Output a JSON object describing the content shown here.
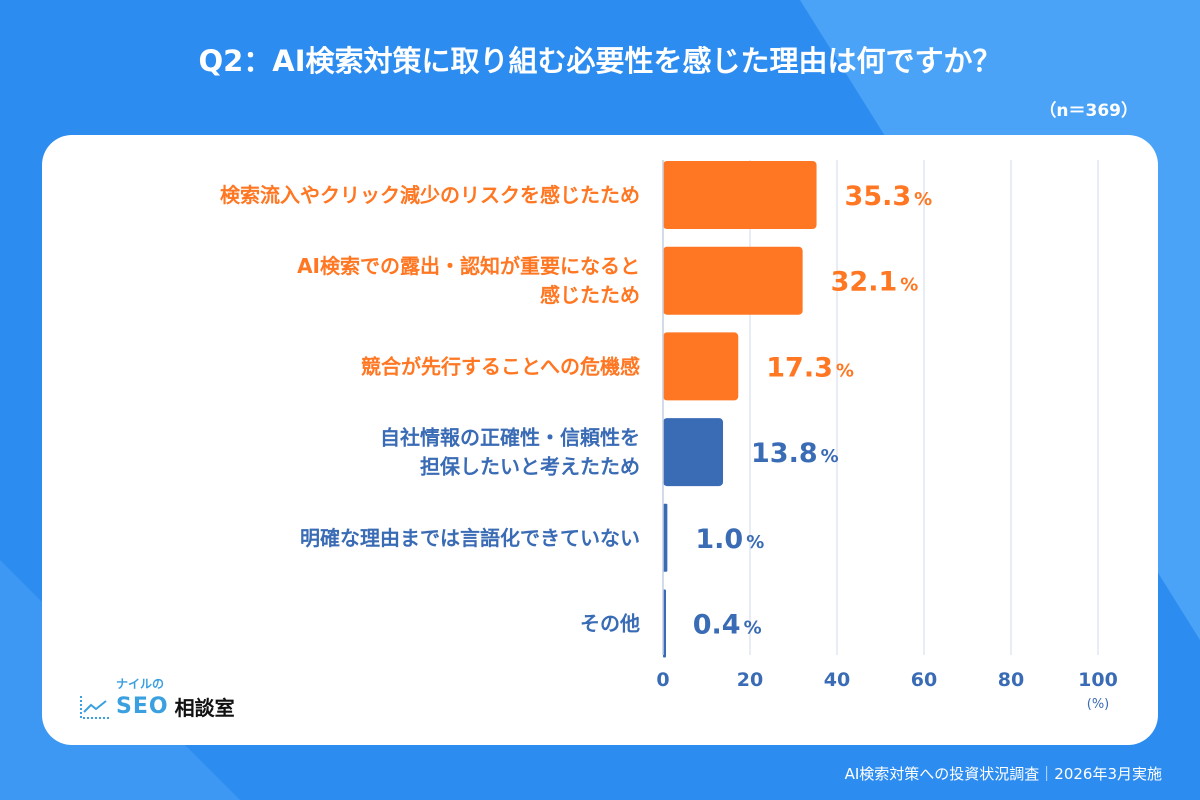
{
  "title": "Q2：AI検索対策に取り組む必要性を感じた理由は何ですか？",
  "sample": "（n＝369）",
  "footer": "AI検索対策への投資状況調査｜2026年3月実施",
  "logo": {
    "small": "ナイルの",
    "main": "SEO",
    "kanji": "相談室"
  },
  "colors": {
    "orange": "#ff7722",
    "blue": "#3a6bb5",
    "grid": "#dfe6f2",
    "bg": "#2d8cf0"
  },
  "chart_data": {
    "type": "bar",
    "orientation": "horizontal",
    "categories": [
      [
        "検索流入やクリック減少のリスクを感じたため"
      ],
      [
        "AI検索での露出・認知が重要になると",
        "感じたため"
      ],
      [
        "競合が先行することへの危機感"
      ],
      [
        "自社情報の正確性・信頼性を",
        "担保したいと考えたため"
      ],
      [
        "明確な理由までは言語化できていない"
      ],
      [
        "その他"
      ]
    ],
    "values": [
      35.3,
      32.1,
      17.3,
      13.8,
      1.0,
      0.4
    ],
    "bar_colors": [
      "#ff7722",
      "#ff7722",
      "#ff7722",
      "#3a6bb5",
      "#3a6bb5",
      "#3a6bb5"
    ],
    "value_suffix": "%",
    "xlim": [
      0,
      100
    ],
    "xticks": [
      "0",
      "20",
      "40",
      "60",
      "80",
      "100"
    ],
    "xunit": "(%)",
    "grid": true
  }
}
